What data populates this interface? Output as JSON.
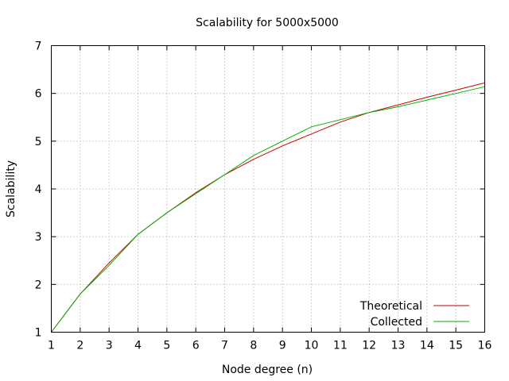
{
  "chart_data": {
    "type": "line",
    "title": "Scalability for 5000x5000",
    "xlabel": "Node degree (n)",
    "ylabel": "Scalability",
    "xlim": [
      1,
      16
    ],
    "ylim": [
      1,
      7
    ],
    "x_ticks": [
      1,
      2,
      3,
      4,
      5,
      6,
      7,
      8,
      9,
      10,
      11,
      12,
      13,
      14,
      15,
      16
    ],
    "y_ticks": [
      1,
      2,
      3,
      4,
      5,
      6,
      7
    ],
    "grid": true,
    "legend_position": "bottom-right",
    "series": [
      {
        "name": "Theoretical",
        "color": "#cc0000",
        "x": [
          1,
          2,
          3,
          4,
          5,
          6,
          7,
          8,
          9,
          10,
          11,
          12,
          13,
          14,
          15,
          16
        ],
        "values": [
          1.0,
          1.8,
          2.45,
          3.05,
          3.5,
          3.92,
          4.3,
          4.62,
          4.9,
          5.15,
          5.4,
          5.6,
          5.76,
          5.92,
          6.07,
          6.22
        ]
      },
      {
        "name": "Collected",
        "color": "#00b000",
        "x": [
          1,
          2,
          3,
          4,
          5,
          6,
          7,
          8,
          9,
          10,
          11,
          12,
          13,
          14,
          15,
          16
        ],
        "values": [
          1.0,
          1.8,
          2.4,
          3.05,
          3.5,
          3.9,
          4.3,
          4.7,
          5.0,
          5.3,
          5.45,
          5.6,
          5.72,
          5.86,
          6.0,
          6.14
        ]
      }
    ]
  }
}
